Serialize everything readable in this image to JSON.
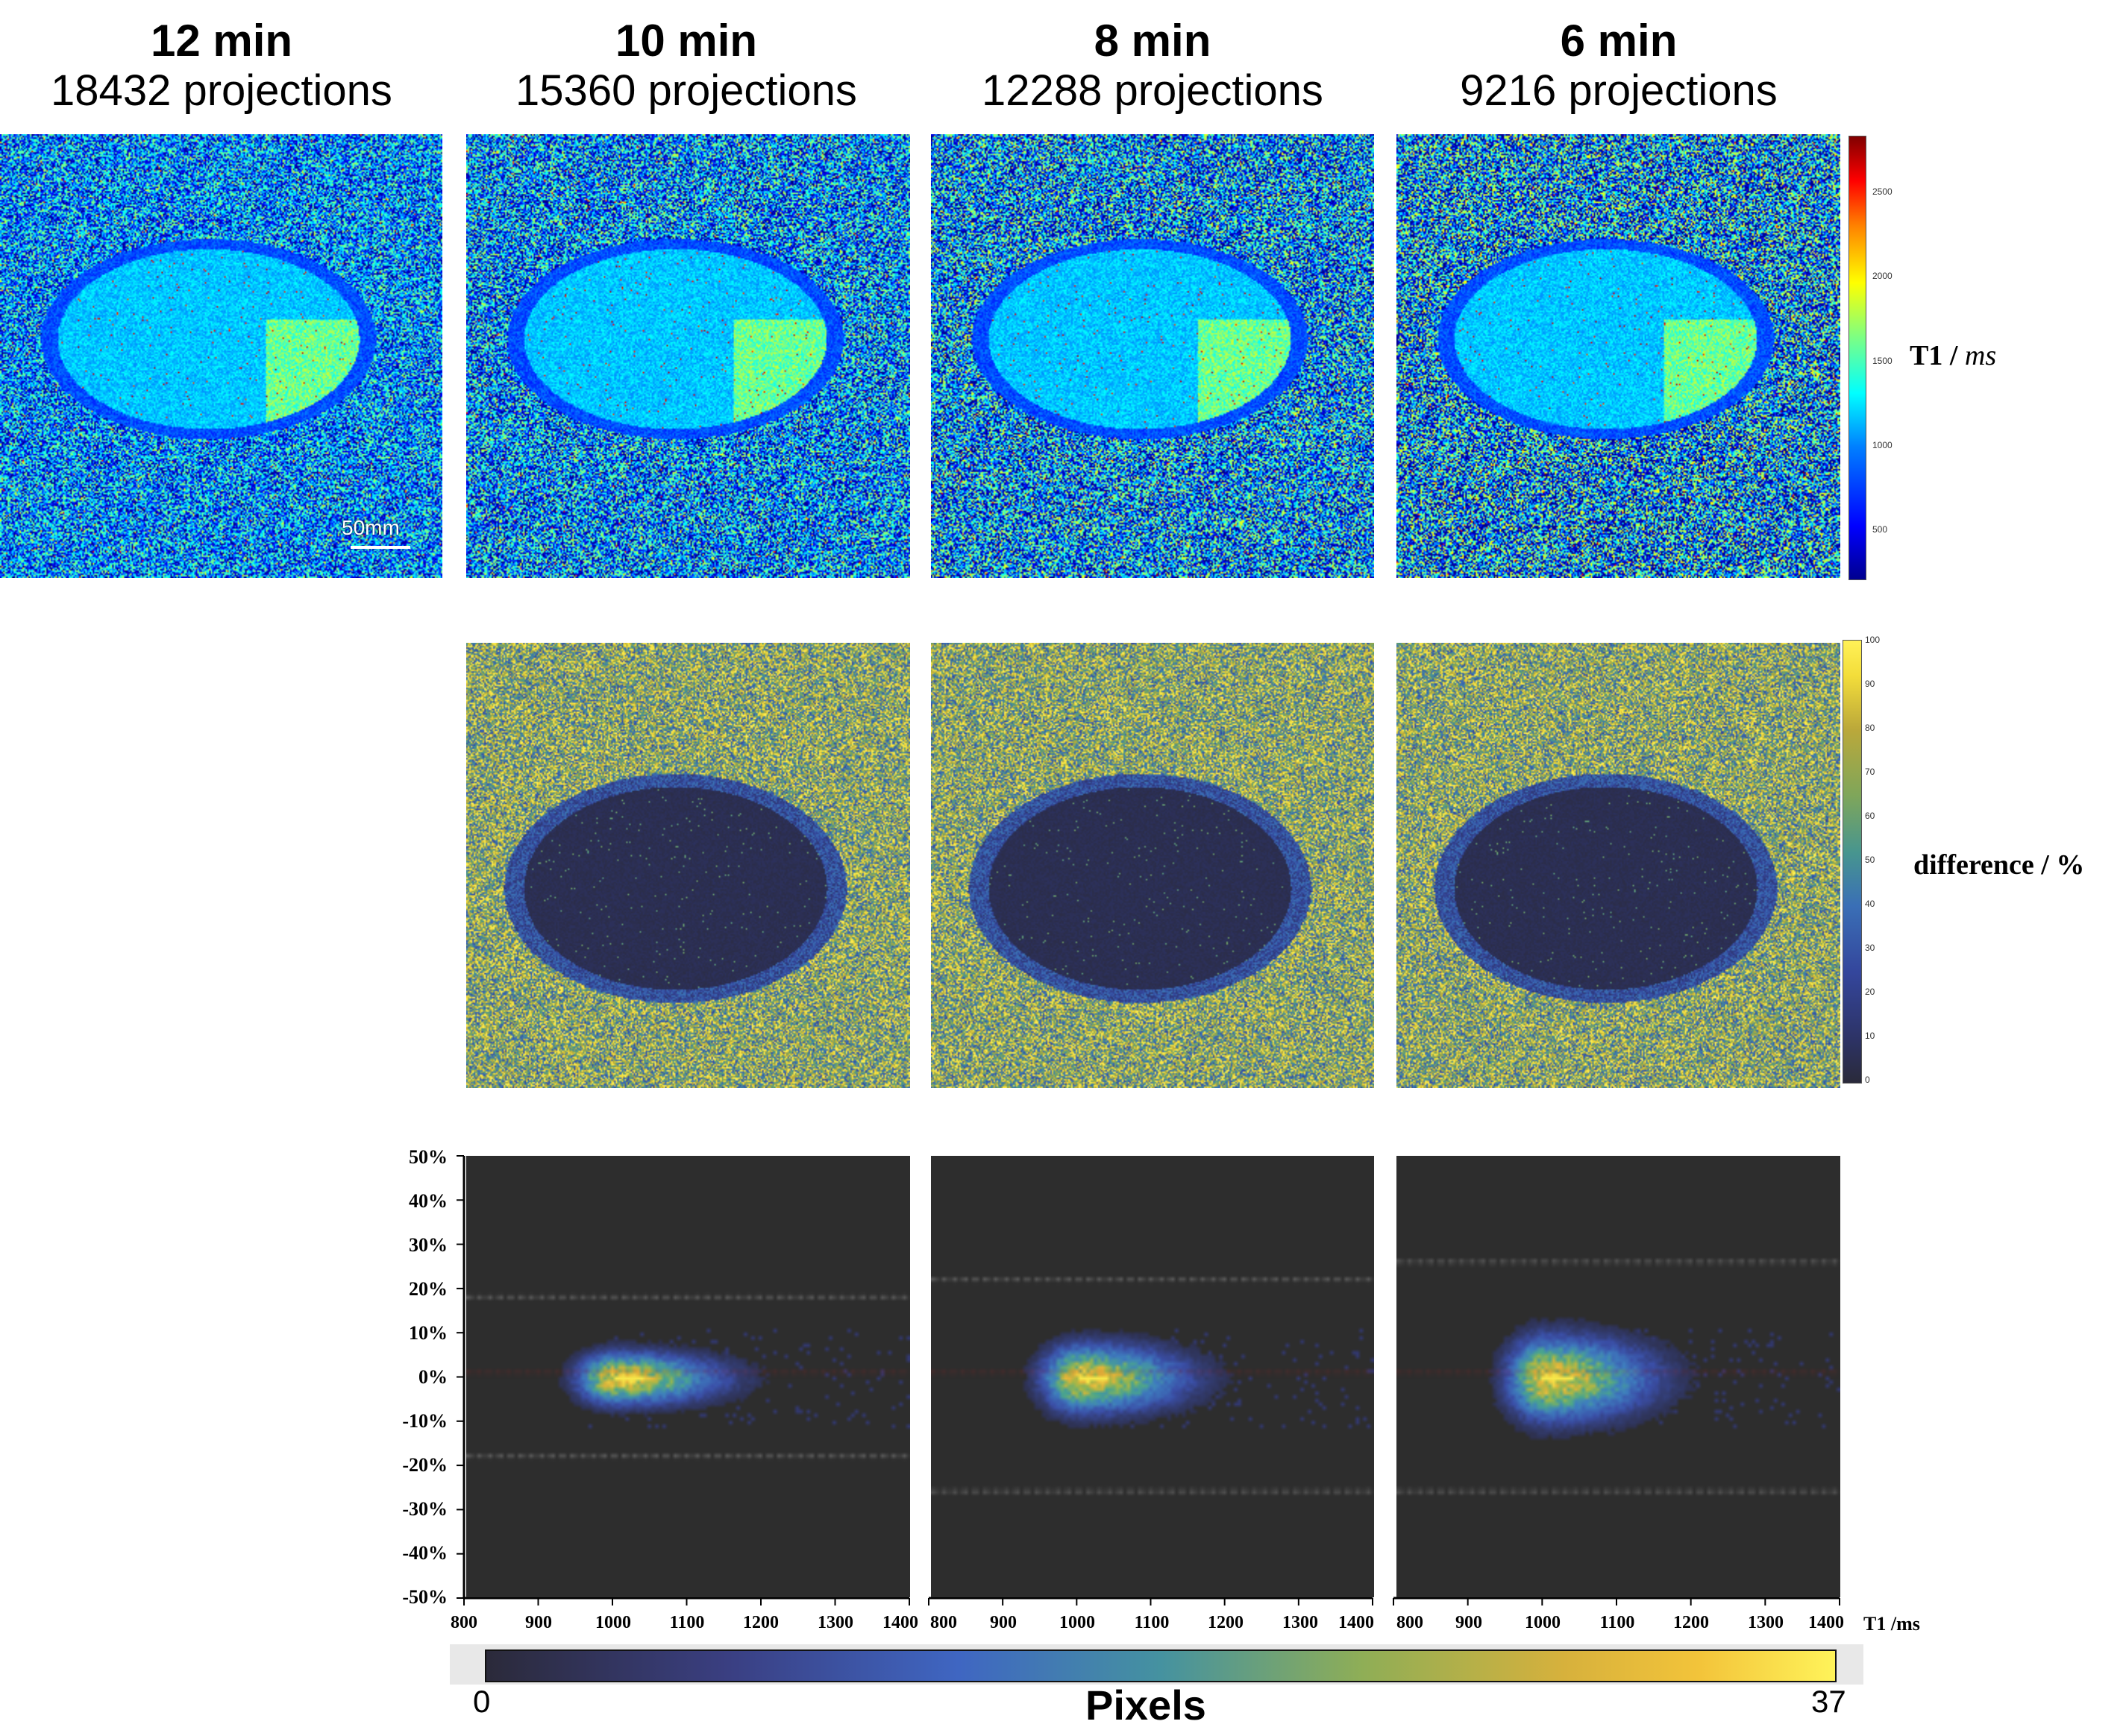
{
  "columns": [
    {
      "time": "12 min",
      "projections": "18432 projections"
    },
    {
      "time": "10 min",
      "projections": "15360 projections"
    },
    {
      "time": "8 min",
      "projections": "12288 projections"
    },
    {
      "time": "6 min",
      "projections": "9216 projections"
    }
  ],
  "t1_colorbar": {
    "label_main": "T1 / ",
    "label_unit": "ms",
    "ticks": [
      "2500",
      "2000",
      "1500",
      "1000",
      "500"
    ]
  },
  "diff_colorbar": {
    "label": "difference / %",
    "ticks": [
      "100",
      "90",
      "80",
      "70",
      "60",
      "50",
      "40",
      "30",
      "20",
      "10",
      "0"
    ]
  },
  "scale_bar": "50mm",
  "pixels_colorbar": {
    "label": "Pixels",
    "min": "0",
    "max": "37",
    "colors": [
      "#2b2a3a",
      "#3b4fa8",
      "#3f7fc0",
      "#4aa58e",
      "#9db84a",
      "#e5b43a",
      "#f7e84a"
    ]
  },
  "chart_data": [
    {
      "type": "heatmap",
      "panel": "10 min",
      "xlabel": "T1 /ms",
      "ylabel": "",
      "xlim": [
        800,
        1400
      ],
      "ylim": [
        -50,
        50
      ],
      "x_ticks": [
        "800",
        "900",
        "1000",
        "1100",
        "1200",
        "1300",
        "1400"
      ],
      "y_ticks": [
        "50%",
        "40%",
        "30%",
        "20%",
        "10%",
        "0%",
        "-10%",
        "-20%",
        "-30%",
        "-40%",
        "-50%"
      ],
      "center_T1": 1000,
      "center_diff": 0,
      "upper_limit": 18,
      "lower_limit": -18,
      "count_range": [
        0,
        37
      ]
    },
    {
      "type": "heatmap",
      "panel": "8 min",
      "xlim": [
        800,
        1400
      ],
      "ylim": [
        -50,
        50
      ],
      "x_ticks": [
        "800",
        "900",
        "1000",
        "1100",
        "1200",
        "1300",
        "1400"
      ],
      "center_T1": 1000,
      "center_diff": 0,
      "upper_limit": 22,
      "lower_limit": -26,
      "count_range": [
        0,
        37
      ]
    },
    {
      "type": "heatmap",
      "panel": "6 min",
      "xlim": [
        800,
        1400
      ],
      "ylim": [
        -50,
        50
      ],
      "x_ticks": [
        "800",
        "900",
        "1000",
        "1100",
        "1200",
        "1300",
        "1400"
      ],
      "center_T1": 1000,
      "center_diff": 0,
      "upper_limit": 26,
      "lower_limit": -26,
      "count_range": [
        0,
        37
      ]
    }
  ]
}
